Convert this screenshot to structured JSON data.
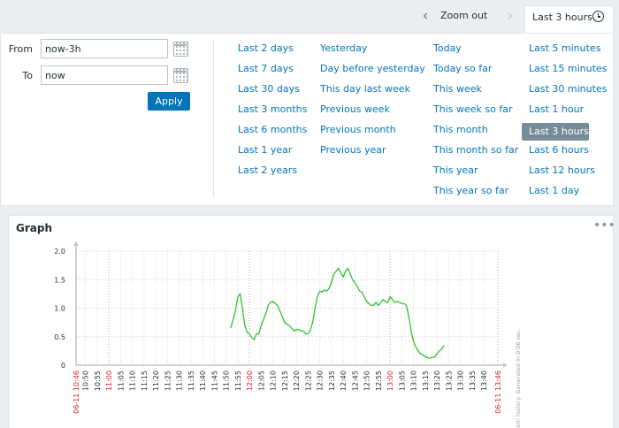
{
  "tabbar": {
    "zoom_out": "Zoom out",
    "active_tab": "Last 3 hours"
  },
  "filter": {
    "from_label": "From",
    "from_value": "now-3h",
    "to_label": "To",
    "to_value": "now",
    "apply_label": "Apply"
  },
  "quick_ranges": {
    "col1": [
      "Last 2 days",
      "Last 7 days",
      "Last 30 days",
      "Last 3 months",
      "Last 6 months",
      "Last 1 year",
      "Last 2 years"
    ],
    "col2": [
      "Yesterday",
      "Day before yesterday",
      "This day last week",
      "Previous week",
      "Previous month",
      "Previous year"
    ],
    "col3": [
      "Today",
      "Today so far",
      "This week",
      "This week so far",
      "This month",
      "This month so far",
      "This year",
      "This year so far"
    ],
    "col4": [
      "Last 5 minutes",
      "Last 15 minutes",
      "Last 30 minutes",
      "Last 1 hour",
      "Last 3 hours",
      "Last 6 hours",
      "Last 12 hours",
      "Last 1 day"
    ],
    "selected": "Last 3 hours"
  },
  "widget": {
    "title": "Graph",
    "side_note": "rom history. Generated in 0.06 sec."
  },
  "colors": {
    "accent": "#0275b8",
    "selected_bg": "#768d99",
    "series": "#1ebe1e",
    "highlight_tick": "#dc1e1e"
  },
  "chart_data": {
    "type": "line",
    "ylim": [
      0,
      2.0
    ],
    "y_ticks": [
      "0",
      "0.5",
      "1.0",
      "1.5",
      "2.0"
    ],
    "x_tick_labels": [
      {
        "text": "06-11 10:46",
        "red": true
      },
      {
        "text": "10:50",
        "red": false
      },
      {
        "text": "10:55",
        "red": false
      },
      {
        "text": "11:00",
        "red": true
      },
      {
        "text": "11:05",
        "red": false
      },
      {
        "text": "11:10",
        "red": false
      },
      {
        "text": "11:15",
        "red": false
      },
      {
        "text": "11:20",
        "red": false
      },
      {
        "text": "11:25",
        "red": false
      },
      {
        "text": "11:30",
        "red": false
      },
      {
        "text": "11:35",
        "red": false
      },
      {
        "text": "11:40",
        "red": false
      },
      {
        "text": "11:45",
        "red": false
      },
      {
        "text": "11:50",
        "red": false
      },
      {
        "text": "11:55",
        "red": false
      },
      {
        "text": "12:00",
        "red": true
      },
      {
        "text": "12:05",
        "red": false
      },
      {
        "text": "12:10",
        "red": false
      },
      {
        "text": "12:15",
        "red": false
      },
      {
        "text": "12:20",
        "red": false
      },
      {
        "text": "12:25",
        "red": false
      },
      {
        "text": "12:30",
        "red": false
      },
      {
        "text": "12:35",
        "red": false
      },
      {
        "text": "12:40",
        "red": false
      },
      {
        "text": "12:45",
        "red": false
      },
      {
        "text": "12:50",
        "red": false
      },
      {
        "text": "12:55",
        "red": false
      },
      {
        "text": "13:00",
        "red": true
      },
      {
        "text": "13:05",
        "red": false
      },
      {
        "text": "13:10",
        "red": false
      },
      {
        "text": "13:15",
        "red": false
      },
      {
        "text": "13:20",
        "red": false
      },
      {
        "text": "13:25",
        "red": false
      },
      {
        "text": "13:30",
        "red": false
      },
      {
        "text": "13:35",
        "red": false
      },
      {
        "text": "13:40",
        "red": false
      },
      {
        "text": "06-11 13:46",
        "red": true
      }
    ],
    "series": [
      {
        "color": "#1ebe1e",
        "points": [
          [
            "11:52",
            0.65
          ],
          [
            "11:53",
            0.8
          ],
          [
            "11:54",
            0.95
          ],
          [
            "11:55",
            1.2
          ],
          [
            "11:56",
            1.25
          ],
          [
            "11:57",
            1.0
          ],
          [
            "11:58",
            0.7
          ],
          [
            "11:59",
            0.58
          ],
          [
            "12:00",
            0.55
          ],
          [
            "12:01",
            0.48
          ],
          [
            "12:02",
            0.45
          ],
          [
            "12:03",
            0.55
          ],
          [
            "12:04",
            0.55
          ],
          [
            "12:05",
            0.7
          ],
          [
            "12:06",
            0.8
          ],
          [
            "12:07",
            0.9
          ],
          [
            "12:08",
            1.05
          ],
          [
            "12:09",
            1.1
          ],
          [
            "12:10",
            1.12
          ],
          [
            "12:11",
            1.08
          ],
          [
            "12:12",
            1.05
          ],
          [
            "12:13",
            0.95
          ],
          [
            "12:14",
            0.85
          ],
          [
            "12:15",
            0.75
          ],
          [
            "12:16",
            0.72
          ],
          [
            "12:17",
            0.7
          ],
          [
            "12:18",
            0.65
          ],
          [
            "12:19",
            0.6
          ],
          [
            "12:20",
            0.62
          ],
          [
            "12:21",
            0.63
          ],
          [
            "12:22",
            0.6
          ],
          [
            "12:23",
            0.6
          ],
          [
            "12:24",
            0.55
          ],
          [
            "12:25",
            0.55
          ],
          [
            "12:26",
            0.62
          ],
          [
            "12:27",
            0.75
          ],
          [
            "12:28",
            1.0
          ],
          [
            "12:29",
            1.2
          ],
          [
            "12:30",
            1.3
          ],
          [
            "12:31",
            1.28
          ],
          [
            "12:32",
            1.32
          ],
          [
            "12:33",
            1.3
          ],
          [
            "12:34",
            1.35
          ],
          [
            "12:35",
            1.45
          ],
          [
            "12:36",
            1.6
          ],
          [
            "12:37",
            1.65
          ],
          [
            "12:38",
            1.7
          ],
          [
            "12:39",
            1.62
          ],
          [
            "12:40",
            1.55
          ],
          [
            "12:41",
            1.65
          ],
          [
            "12:42",
            1.7
          ],
          [
            "12:43",
            1.6
          ],
          [
            "12:44",
            1.5
          ],
          [
            "12:45",
            1.45
          ],
          [
            "12:46",
            1.38
          ],
          [
            "12:47",
            1.3
          ],
          [
            "12:48",
            1.28
          ],
          [
            "12:49",
            1.2
          ],
          [
            "12:50",
            1.12
          ],
          [
            "12:51",
            1.08
          ],
          [
            "12:52",
            1.05
          ],
          [
            "12:53",
            1.05
          ],
          [
            "12:54",
            1.1
          ],
          [
            "12:55",
            1.05
          ],
          [
            "12:56",
            1.1
          ],
          [
            "12:57",
            1.15
          ],
          [
            "12:58",
            1.12
          ],
          [
            "12:59",
            1.1
          ],
          [
            "13:00",
            1.2
          ],
          [
            "13:01",
            1.15
          ],
          [
            "13:02",
            1.1
          ],
          [
            "13:03",
            1.12
          ],
          [
            "13:04",
            1.1
          ],
          [
            "13:05",
            1.08
          ],
          [
            "13:06",
            1.08
          ],
          [
            "13:07",
            1.05
          ],
          [
            "13:08",
            0.85
          ],
          [
            "13:09",
            0.6
          ],
          [
            "13:10",
            0.42
          ],
          [
            "13:11",
            0.32
          ],
          [
            "13:12",
            0.25
          ],
          [
            "13:13",
            0.2
          ],
          [
            "13:14",
            0.18
          ],
          [
            "13:15",
            0.15
          ],
          [
            "13:16",
            0.13
          ],
          [
            "13:17",
            0.12
          ],
          [
            "13:18",
            0.14
          ],
          [
            "13:19",
            0.14
          ],
          [
            "13:20",
            0.2
          ],
          [
            "13:21",
            0.25
          ],
          [
            "13:22",
            0.28
          ],
          [
            "13:23",
            0.35
          ]
        ]
      }
    ]
  }
}
